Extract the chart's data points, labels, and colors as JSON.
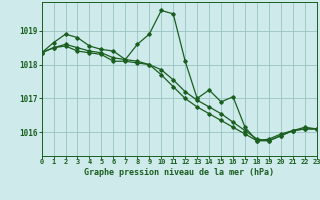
{
  "title": "Graphe pression niveau de la mer (hPa)",
  "background_color": "#ceeaea",
  "grid_color": "#a0c8c8",
  "line_color": "#1a5e20",
  "xlim": [
    0,
    23
  ],
  "ylim": [
    1015.3,
    1019.85
  ],
  "yticks": [
    1016,
    1017,
    1018,
    1019
  ],
  "xticks": [
    0,
    1,
    2,
    3,
    4,
    5,
    6,
    7,
    8,
    9,
    10,
    11,
    12,
    13,
    14,
    15,
    16,
    17,
    18,
    19,
    20,
    21,
    22,
    23
  ],
  "series1": [
    [
      0,
      1018.35
    ],
    [
      1,
      1018.65
    ],
    [
      2,
      1018.9
    ],
    [
      3,
      1018.8
    ],
    [
      4,
      1018.55
    ],
    [
      5,
      1018.45
    ],
    [
      6,
      1018.4
    ],
    [
      7,
      1018.15
    ],
    [
      8,
      1018.6
    ],
    [
      9,
      1018.9
    ],
    [
      10,
      1019.6
    ],
    [
      11,
      1019.5
    ],
    [
      12,
      1018.1
    ],
    [
      13,
      1017.0
    ],
    [
      14,
      1017.25
    ],
    [
      15,
      1016.9
    ],
    [
      16,
      1017.05
    ],
    [
      17,
      1016.15
    ],
    [
      18,
      1015.75
    ],
    [
      19,
      1015.8
    ],
    [
      20,
      1015.95
    ],
    [
      21,
      1016.05
    ],
    [
      22,
      1016.15
    ],
    [
      23,
      1016.1
    ]
  ],
  "series2": [
    [
      0,
      1018.35
    ],
    [
      1,
      1018.5
    ],
    [
      2,
      1018.55
    ],
    [
      3,
      1018.4
    ],
    [
      4,
      1018.35
    ],
    [
      5,
      1018.3
    ],
    [
      6,
      1018.1
    ],
    [
      7,
      1018.1
    ],
    [
      8,
      1018.05
    ],
    [
      9,
      1018.0
    ],
    [
      10,
      1017.7
    ],
    [
      11,
      1017.35
    ],
    [
      12,
      1017.0
    ],
    [
      13,
      1016.75
    ],
    [
      14,
      1016.55
    ],
    [
      15,
      1016.35
    ],
    [
      16,
      1016.15
    ],
    [
      17,
      1015.95
    ],
    [
      18,
      1015.75
    ],
    [
      19,
      1015.75
    ],
    [
      20,
      1015.9
    ],
    [
      21,
      1016.05
    ],
    [
      22,
      1016.1
    ],
    [
      23,
      1016.1
    ]
  ],
  "series3": [
    [
      0,
      1018.35
    ],
    [
      1,
      1018.5
    ],
    [
      2,
      1018.6
    ],
    [
      3,
      1018.5
    ],
    [
      4,
      1018.4
    ],
    [
      5,
      1018.35
    ],
    [
      6,
      1018.2
    ],
    [
      7,
      1018.15
    ],
    [
      8,
      1018.1
    ],
    [
      9,
      1018.0
    ],
    [
      10,
      1017.85
    ],
    [
      11,
      1017.55
    ],
    [
      12,
      1017.2
    ],
    [
      13,
      1016.95
    ],
    [
      14,
      1016.75
    ],
    [
      15,
      1016.55
    ],
    [
      16,
      1016.3
    ],
    [
      17,
      1016.05
    ],
    [
      18,
      1015.8
    ],
    [
      19,
      1015.75
    ],
    [
      20,
      1015.9
    ],
    [
      21,
      1016.05
    ],
    [
      22,
      1016.1
    ],
    [
      23,
      1016.1
    ]
  ]
}
